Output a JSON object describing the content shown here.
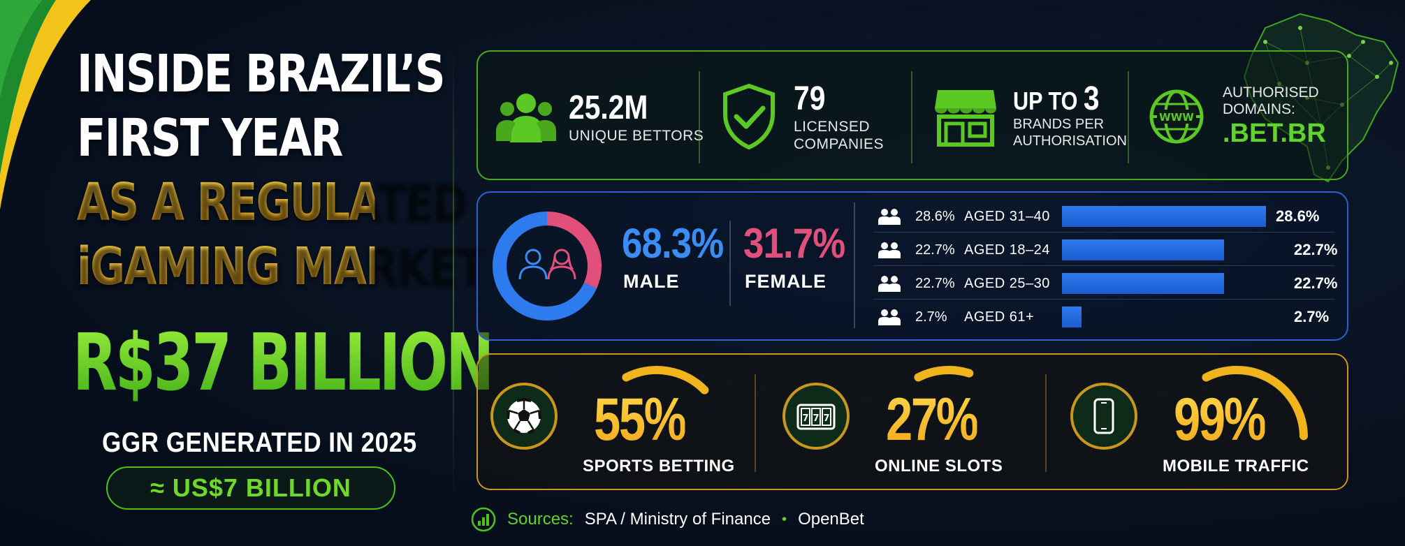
{
  "headline": {
    "line1": "INSIDE BRAZIL’S",
    "line2": "FIRST YEAR",
    "line3": "AS A REGULATED",
    "line4": "iGAMING MARKET"
  },
  "ggr": {
    "amount": "R$37 BILLION",
    "caption": "GGR GENERATED IN 2025",
    "usd_equivalent": "≈ US$7 BILLION"
  },
  "key_stats": [
    {
      "icon": "users-icon",
      "value": "25.2M",
      "label": "UNIQUE BETTORS"
    },
    {
      "icon": "shield-check-icon",
      "value": "79",
      "label_line1": "LICENSED",
      "label_line2": "COMPANIES"
    },
    {
      "icon": "storefront-icon",
      "value_prefix": "UP TO ",
      "value": "3",
      "label_line1": "BRANDS PER",
      "label_line2": "AUTHORISATION"
    },
    {
      "icon": "globe-www-icon",
      "label_line1": "AUTHORISED",
      "label_line2": "DOMAINS:",
      "value": ".BET.BR"
    }
  ],
  "gender": {
    "male_pct": "68.3%",
    "male_label": "MALE",
    "female_pct": "31.7%",
    "female_label": "FEMALE",
    "male_share": 0.683,
    "male_color": "#2e7bf0",
    "female_color": "#e0507a"
  },
  "age_groups": [
    {
      "pct_left": "28.6%",
      "label": "AGED 31–40",
      "value": 28.6,
      "pct_right": "28.6%"
    },
    {
      "pct_left": "22.7%",
      "label": "AGED 18–24",
      "value": 22.7,
      "pct_right": "22.7%"
    },
    {
      "pct_left": "22.7%",
      "label": "AGED 25–30",
      "value": 22.7,
      "pct_right": "22.7%"
    },
    {
      "pct_left": "2.7%",
      "label": "AGED 61+",
      "value": 2.7,
      "pct_right": "2.7%"
    }
  ],
  "verticals": [
    {
      "icon": "soccer-ball-icon",
      "pct": "55%",
      "label": "SPORTS BETTING",
      "value": 55
    },
    {
      "icon": "slot-machine-icon",
      "pct": "27%",
      "label": "ONLINE SLOTS",
      "value": 27
    },
    {
      "icon": "smartphone-icon",
      "pct": "99%",
      "label": "MOBILE TRAFFIC",
      "value": 99
    }
  ],
  "sources": {
    "label": "Sources:",
    "item1": "SPA / Ministry of Finance",
    "separator": "•",
    "item2": "OpenBet"
  },
  "colors": {
    "green": "#4cc21a",
    "gold": "#f6c22c",
    "blue": "#2e7bf0",
    "pink": "#e0507a",
    "background": "#081120"
  }
}
